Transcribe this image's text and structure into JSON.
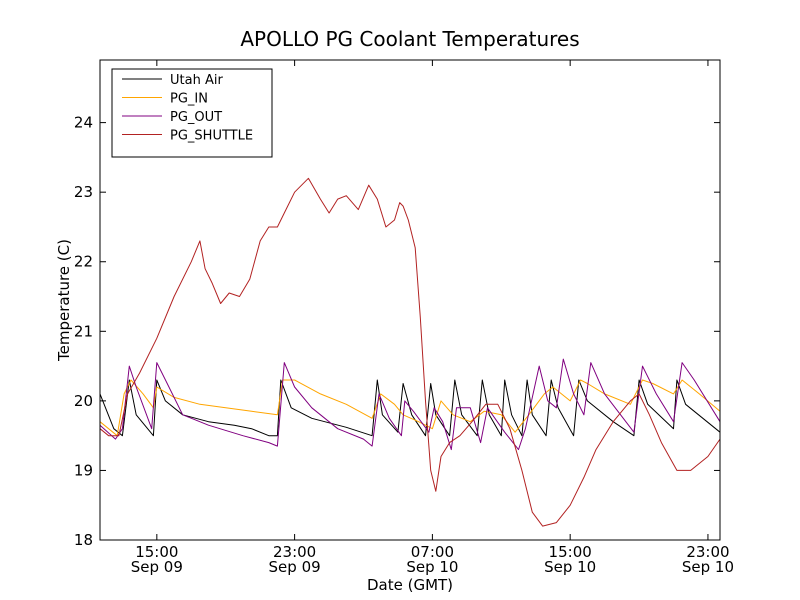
{
  "chart_data": {
    "type": "line",
    "title": "APOLLO PG Coolant Temperatures",
    "xlabel": "Date (GMT)",
    "ylabel": "Temperature (C)",
    "xlim": [
      11.7,
      47.7
    ],
    "ylim": [
      18,
      24.9
    ],
    "grid": false,
    "legend_position": "top-left",
    "yticks": [
      {
        "value": 18,
        "label": "18"
      },
      {
        "value": 19,
        "label": "19"
      },
      {
        "value": 20,
        "label": "20"
      },
      {
        "value": 21,
        "label": "21"
      },
      {
        "value": 22,
        "label": "22"
      },
      {
        "value": 23,
        "label": "23"
      },
      {
        "value": 24,
        "label": "24"
      }
    ],
    "xticks": [
      {
        "value": 15,
        "time": "15:00",
        "date": "Sep 09"
      },
      {
        "value": 23,
        "time": "23:00",
        "date": "Sep 09"
      },
      {
        "value": 31,
        "time": "07:00",
        "date": "Sep 10"
      },
      {
        "value": 39,
        "time": "15:00",
        "date": "Sep 10"
      },
      {
        "value": 47,
        "time": "23:00",
        "date": "Sep 10"
      }
    ],
    "series": [
      {
        "name": "Utah Air",
        "color": "#000000",
        "points": [
          [
            11.7,
            20.1
          ],
          [
            12.5,
            19.6
          ],
          [
            13.0,
            19.5
          ],
          [
            13.4,
            20.3
          ],
          [
            13.8,
            19.8
          ],
          [
            14.8,
            19.5
          ],
          [
            15.0,
            20.3
          ],
          [
            15.5,
            20.0
          ],
          [
            16.5,
            19.8
          ],
          [
            18.0,
            19.7
          ],
          [
            19.5,
            19.65
          ],
          [
            20.5,
            19.6
          ],
          [
            21.5,
            19.5
          ],
          [
            22.0,
            19.5
          ],
          [
            22.2,
            20.3
          ],
          [
            22.8,
            19.9
          ],
          [
            24.0,
            19.75
          ],
          [
            26.0,
            19.62
          ],
          [
            27.5,
            19.5
          ],
          [
            27.8,
            20.3
          ],
          [
            28.1,
            19.8
          ],
          [
            29.0,
            19.55
          ],
          [
            29.3,
            20.25
          ],
          [
            29.8,
            19.8
          ],
          [
            30.6,
            19.5
          ],
          [
            30.9,
            20.25
          ],
          [
            31.2,
            19.8
          ],
          [
            32.0,
            19.5
          ],
          [
            32.3,
            20.3
          ],
          [
            32.7,
            19.8
          ],
          [
            33.6,
            19.5
          ],
          [
            33.9,
            20.3
          ],
          [
            34.3,
            19.8
          ],
          [
            35.0,
            19.5
          ],
          [
            35.2,
            20.3
          ],
          [
            35.6,
            19.8
          ],
          [
            36.2,
            19.5
          ],
          [
            36.5,
            20.3
          ],
          [
            36.8,
            19.8
          ],
          [
            37.6,
            19.5
          ],
          [
            37.9,
            20.3
          ],
          [
            38.3,
            19.9
          ],
          [
            39.2,
            19.5
          ],
          [
            39.5,
            20.3
          ],
          [
            40.0,
            20.0
          ],
          [
            41.5,
            19.7
          ],
          [
            42.7,
            19.5
          ],
          [
            43.0,
            20.3
          ],
          [
            43.5,
            19.95
          ],
          [
            45.0,
            19.6
          ],
          [
            45.2,
            20.3
          ],
          [
            45.7,
            19.95
          ],
          [
            47.7,
            19.55
          ]
        ]
      },
      {
        "name": "PG_IN",
        "color": "#ffa500",
        "points": [
          [
            11.7,
            19.7
          ],
          [
            12.7,
            19.5
          ],
          [
            13.1,
            20.1
          ],
          [
            13.5,
            20.3
          ],
          [
            14.2,
            20.1
          ],
          [
            14.8,
            19.9
          ],
          [
            15.0,
            20.2
          ],
          [
            16.0,
            20.05
          ],
          [
            17.5,
            19.95
          ],
          [
            19.0,
            19.9
          ],
          [
            20.5,
            19.85
          ],
          [
            22.0,
            19.8
          ],
          [
            22.3,
            20.3
          ],
          [
            23.0,
            20.3
          ],
          [
            24.5,
            20.1
          ],
          [
            26.0,
            19.95
          ],
          [
            27.5,
            19.75
          ],
          [
            28.0,
            20.1
          ],
          [
            28.8,
            19.95
          ],
          [
            29.3,
            19.8
          ],
          [
            30.2,
            19.7
          ],
          [
            31.0,
            19.6
          ],
          [
            31.5,
            20.0
          ],
          [
            32.2,
            19.8
          ],
          [
            33.2,
            19.7
          ],
          [
            34.0,
            19.85
          ],
          [
            35.0,
            19.8
          ],
          [
            35.8,
            19.55
          ],
          [
            36.6,
            19.8
          ],
          [
            37.5,
            20.1
          ],
          [
            38.0,
            20.2
          ],
          [
            39.0,
            20.0
          ],
          [
            39.6,
            20.3
          ],
          [
            40.0,
            20.25
          ],
          [
            41.0,
            20.1
          ],
          [
            42.5,
            19.95
          ],
          [
            43.2,
            20.3
          ],
          [
            43.8,
            20.25
          ],
          [
            45.0,
            20.1
          ],
          [
            45.5,
            20.3
          ],
          [
            46.5,
            20.1
          ],
          [
            47.7,
            19.85
          ]
        ]
      },
      {
        "name": "PG_OUT",
        "color": "#800080",
        "points": [
          [
            11.7,
            19.65
          ],
          [
            12.6,
            19.45
          ],
          [
            13.0,
            19.6
          ],
          [
            13.4,
            20.5
          ],
          [
            13.8,
            20.2
          ],
          [
            14.7,
            19.6
          ],
          [
            15.0,
            20.55
          ],
          [
            15.6,
            20.25
          ],
          [
            16.5,
            19.8
          ],
          [
            18.0,
            19.65
          ],
          [
            20.0,
            19.5
          ],
          [
            21.5,
            19.4
          ],
          [
            22.0,
            19.35
          ],
          [
            22.4,
            20.55
          ],
          [
            23.0,
            20.2
          ],
          [
            24.0,
            19.9
          ],
          [
            25.5,
            19.6
          ],
          [
            27.0,
            19.45
          ],
          [
            27.5,
            19.35
          ],
          [
            27.9,
            20.1
          ],
          [
            28.5,
            19.75
          ],
          [
            29.2,
            19.5
          ],
          [
            29.4,
            20.0
          ],
          [
            29.9,
            19.85
          ],
          [
            30.8,
            19.55
          ],
          [
            31.1,
            19.9
          ],
          [
            31.6,
            19.7
          ],
          [
            32.1,
            19.3
          ],
          [
            32.4,
            19.9
          ],
          [
            33.2,
            19.9
          ],
          [
            33.8,
            19.4
          ],
          [
            34.2,
            19.9
          ],
          [
            35.2,
            19.55
          ],
          [
            36.0,
            19.3
          ],
          [
            36.4,
            19.6
          ],
          [
            37.2,
            20.5
          ],
          [
            37.7,
            20.0
          ],
          [
            38.2,
            19.9
          ],
          [
            38.6,
            20.6
          ],
          [
            39.2,
            20.1
          ],
          [
            39.8,
            19.8
          ],
          [
            40.2,
            20.55
          ],
          [
            41.0,
            20.1
          ],
          [
            42.7,
            19.55
          ],
          [
            43.2,
            20.5
          ],
          [
            44.0,
            20.1
          ],
          [
            45.0,
            19.7
          ],
          [
            45.5,
            20.55
          ],
          [
            46.2,
            20.3
          ],
          [
            47.7,
            19.7
          ]
        ]
      },
      {
        "name": "PG_SHUTTLE",
        "color": "#b22222",
        "points": [
          [
            11.7,
            19.6
          ],
          [
            12.2,
            19.5
          ],
          [
            12.8,
            19.5
          ],
          [
            13.3,
            20.1
          ],
          [
            14.0,
            20.4
          ],
          [
            15.0,
            20.9
          ],
          [
            16.0,
            21.5
          ],
          [
            17.0,
            22.0
          ],
          [
            17.5,
            22.3
          ],
          [
            17.8,
            21.9
          ],
          [
            18.2,
            21.7
          ],
          [
            18.7,
            21.4
          ],
          [
            19.2,
            21.55
          ],
          [
            19.8,
            21.5
          ],
          [
            20.4,
            21.75
          ],
          [
            21.0,
            22.3
          ],
          [
            21.5,
            22.5
          ],
          [
            22.0,
            22.5
          ],
          [
            22.4,
            22.7
          ],
          [
            23.0,
            23.0
          ],
          [
            23.8,
            23.2
          ],
          [
            24.5,
            22.9
          ],
          [
            25.0,
            22.7
          ],
          [
            25.5,
            22.9
          ],
          [
            26.0,
            22.95
          ],
          [
            26.7,
            22.75
          ],
          [
            27.3,
            23.1
          ],
          [
            27.8,
            22.9
          ],
          [
            28.3,
            22.5
          ],
          [
            28.8,
            22.6
          ],
          [
            29.1,
            22.85
          ],
          [
            29.3,
            22.8
          ],
          [
            29.6,
            22.6
          ],
          [
            30.0,
            22.2
          ],
          [
            30.3,
            21.2
          ],
          [
            30.6,
            20.0
          ],
          [
            30.9,
            19.0
          ],
          [
            31.2,
            18.7
          ],
          [
            31.5,
            19.2
          ],
          [
            32.0,
            19.4
          ],
          [
            32.6,
            19.5
          ],
          [
            33.3,
            19.7
          ],
          [
            34.1,
            19.95
          ],
          [
            34.8,
            19.95
          ],
          [
            35.5,
            19.6
          ],
          [
            36.2,
            19.0
          ],
          [
            36.8,
            18.4
          ],
          [
            37.4,
            18.2
          ],
          [
            38.2,
            18.25
          ],
          [
            39.0,
            18.5
          ],
          [
            39.8,
            18.9
          ],
          [
            40.5,
            19.3
          ],
          [
            41.5,
            19.7
          ],
          [
            42.5,
            20.0
          ],
          [
            43.0,
            20.1
          ],
          [
            43.6,
            19.8
          ],
          [
            44.3,
            19.4
          ],
          [
            45.2,
            19.0
          ],
          [
            46.0,
            19.0
          ],
          [
            47.0,
            19.2
          ],
          [
            47.7,
            19.45
          ]
        ]
      }
    ]
  }
}
